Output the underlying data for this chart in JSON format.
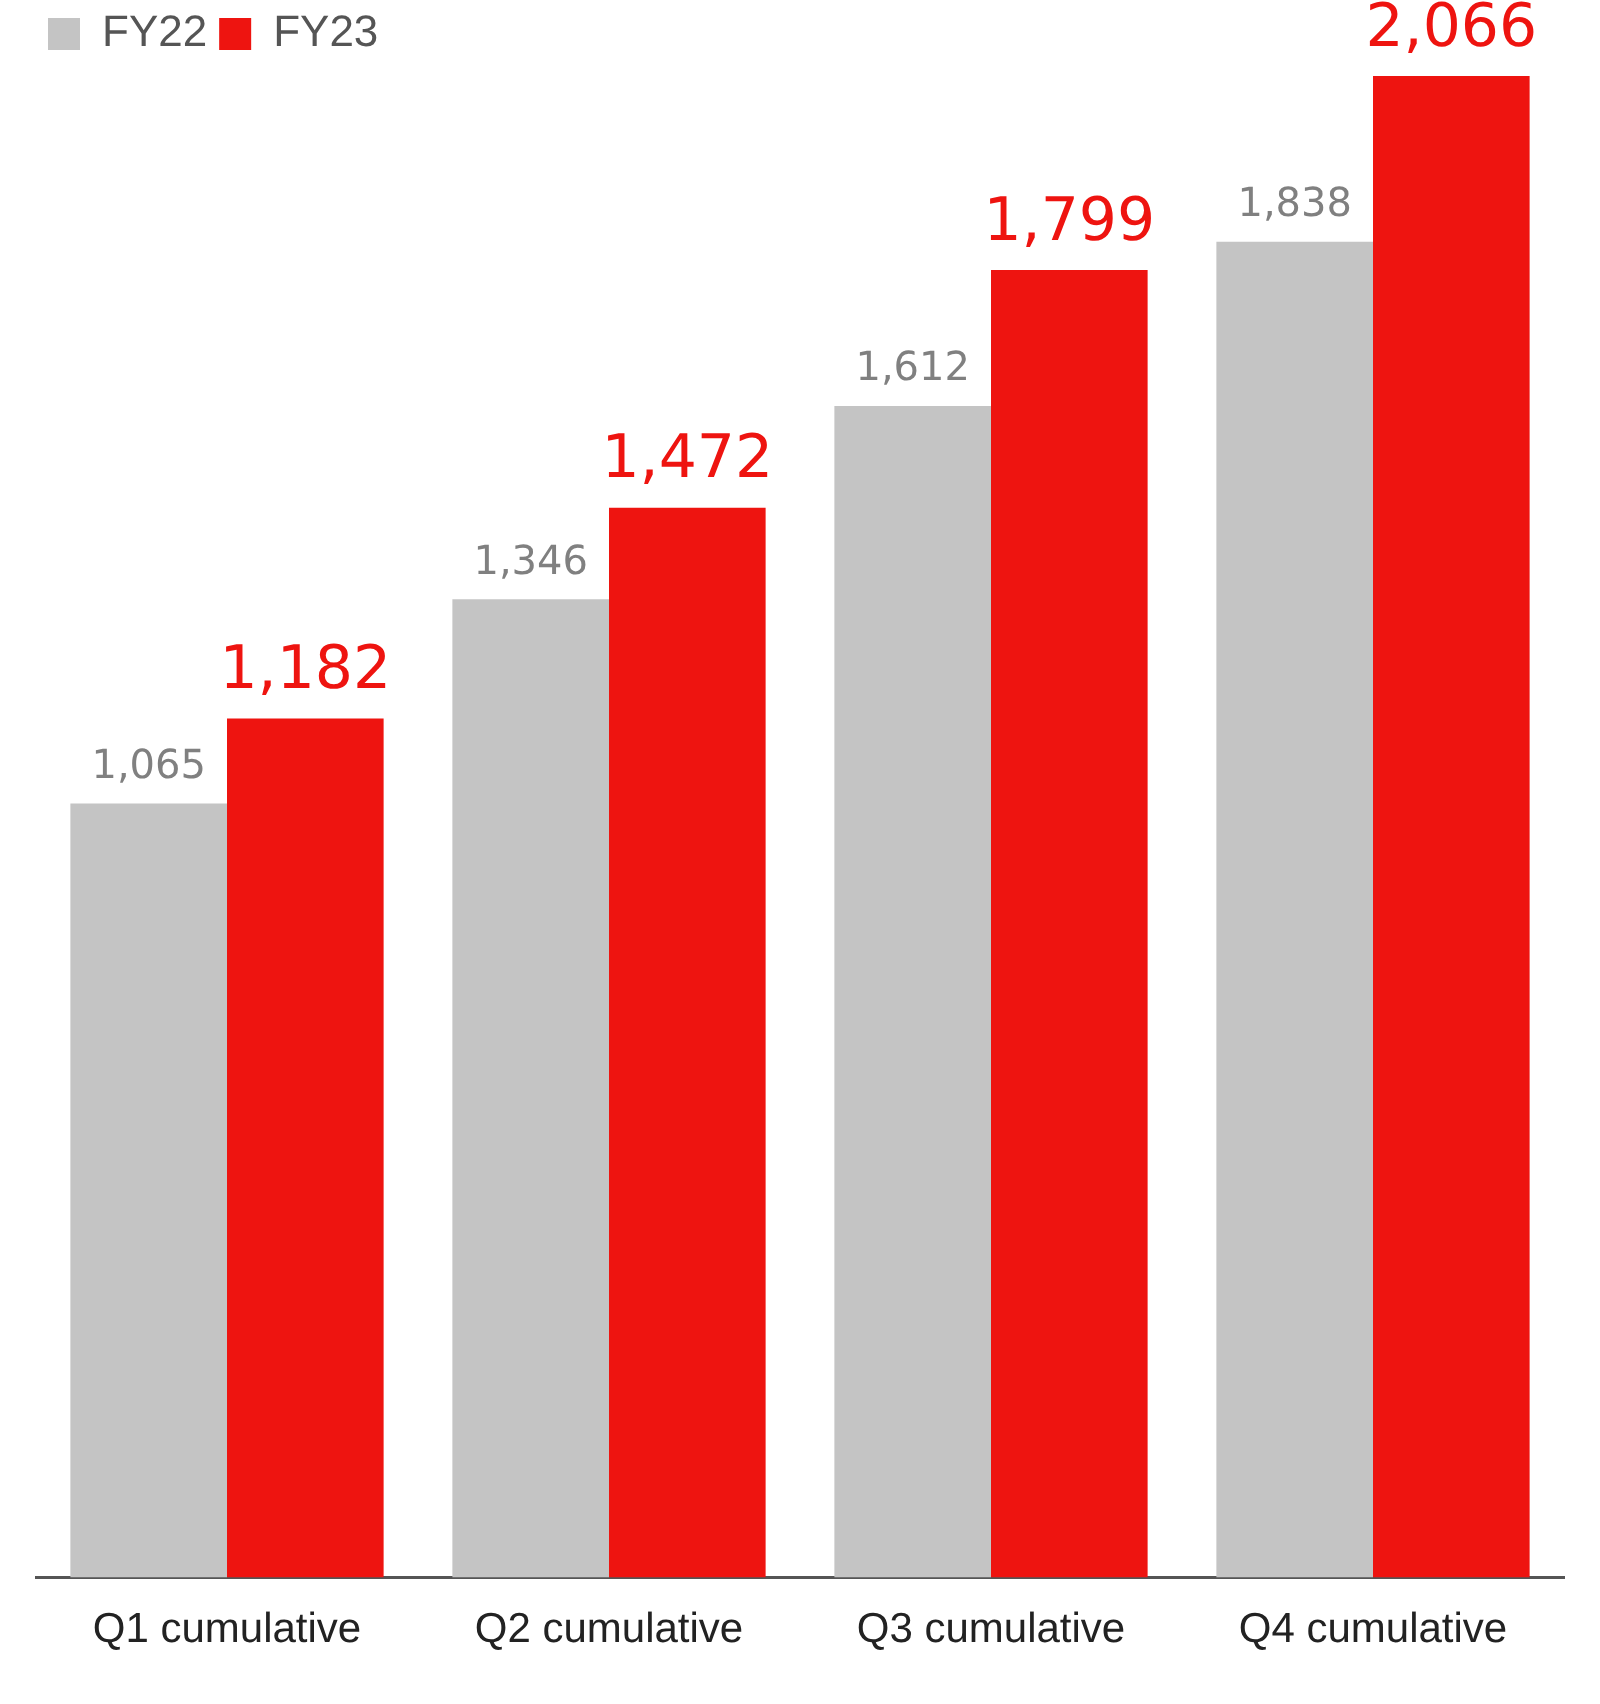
{
  "chart_data": {
    "type": "bar",
    "categories": [
      "Q1 cumulative",
      "Q2 cumulative",
      "Q3 cumulative",
      "Q4 cumulative"
    ],
    "series": [
      {
        "name": "FY22",
        "color": "#c4c4c4",
        "values": [
          1065,
          1346,
          1612,
          1838
        ],
        "value_labels": [
          "1,065",
          "1,346",
          "1,612",
          "1,838"
        ]
      },
      {
        "name": "FY23",
        "color": "#ee1410",
        "values": [
          1182,
          1472,
          1799,
          2066
        ],
        "value_labels": [
          "1,182",
          "1,472",
          "1,799",
          "2,066"
        ]
      }
    ],
    "legend": "top left",
    "grid": false,
    "tick_labels": "x"
  }
}
